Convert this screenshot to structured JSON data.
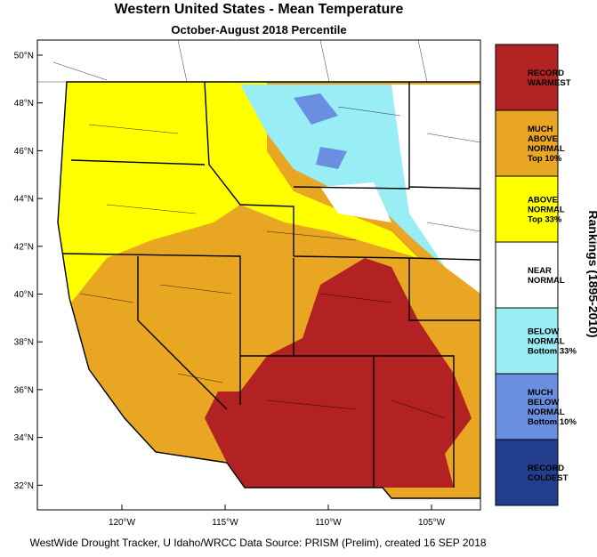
{
  "header": {
    "title": "Western United States - Mean Temperature",
    "subtitle": "October-August 2018 Percentile"
  },
  "map": {
    "lat_labels": [
      "50°N",
      "48°N",
      "46°N",
      "44°N",
      "42°N",
      "40°N",
      "38°N",
      "36°N",
      "34°N",
      "32°N"
    ],
    "lon_labels": [
      "120°W",
      "115°W",
      "110°W",
      "105°W"
    ]
  },
  "legend": {
    "title": "Rankings (1895-2010)",
    "entries": [
      {
        "lines": [
          "RECORD",
          "WARMEST"
        ],
        "color": "#b22222"
      },
      {
        "lines": [
          "MUCH",
          "ABOVE",
          "NORMAL",
          "Top 10%"
        ],
        "color": "#e9a623"
      },
      {
        "lines": [
          "ABOVE",
          "NORMAL",
          "Top 33%"
        ],
        "color": "#ffff00"
      },
      {
        "lines": [
          "NEAR",
          "NORMAL"
        ],
        "color": "#ffffff"
      },
      {
        "lines": [
          "BELOW",
          "NORMAL",
          "Bottom 33%"
        ],
        "color": "#99eef5"
      },
      {
        "lines": [
          "MUCH",
          "BELOW",
          "NORMAL",
          "Bottom 10%"
        ],
        "color": "#6a8fe0"
      },
      {
        "lines": [
          "RECORD",
          "COLDEST"
        ],
        "color": "#233e8c"
      }
    ]
  },
  "footer": "WestWide Drought Tracker, U Idaho/WRCC Data Source: PRISM (Prelim), created 16 SEP 2018"
}
